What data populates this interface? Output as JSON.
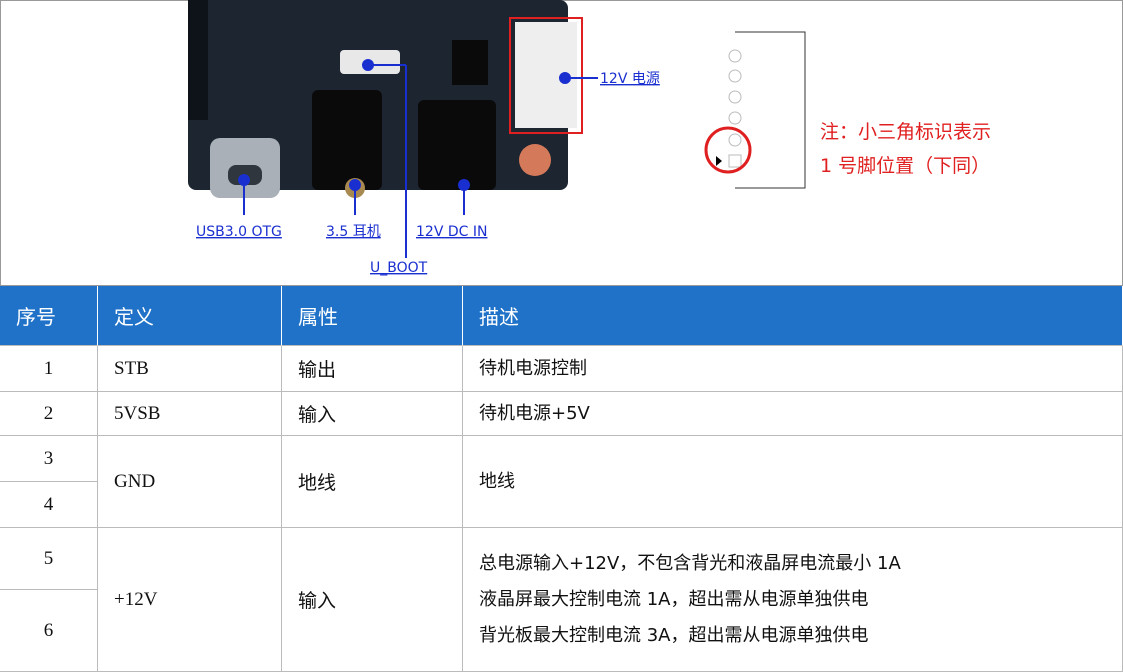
{
  "figure": {
    "labels": {
      "power": "12V 电源",
      "usb": "USB3.0  OTG",
      "audio": "3.5 耳机",
      "dc": "12V  DC  IN",
      "boot": "U_BOOT"
    },
    "note": [
      "注：小三角标识表示",
      "1 号脚位置（下同）"
    ]
  },
  "table": {
    "header": [
      "序号",
      "定义",
      "属性",
      "描述"
    ],
    "rows": [
      {
        "numbers": [
          "1"
        ],
        "definition": "STB",
        "attribute": "输出",
        "description": [
          "待机电源控制"
        ]
      },
      {
        "numbers": [
          "2"
        ],
        "definition": "5VSB",
        "attribute": "输入",
        "description": [
          "待机电源+5V"
        ]
      },
      {
        "numbers": [
          "3",
          "4"
        ],
        "definition": "GND",
        "attribute": "地线",
        "description": [
          "地线"
        ]
      },
      {
        "numbers": [
          "5",
          "6"
        ],
        "definition": "+12V",
        "attribute": "输入",
        "description": [
          "总电源输入+12V，不包含背光和液晶屏电流最小 1A",
          "液晶屏最大控制电流 1A，超出需从电源单独供电",
          "背光板最大控制电流 3A，超出需从电源单独供电"
        ]
      }
    ]
  }
}
